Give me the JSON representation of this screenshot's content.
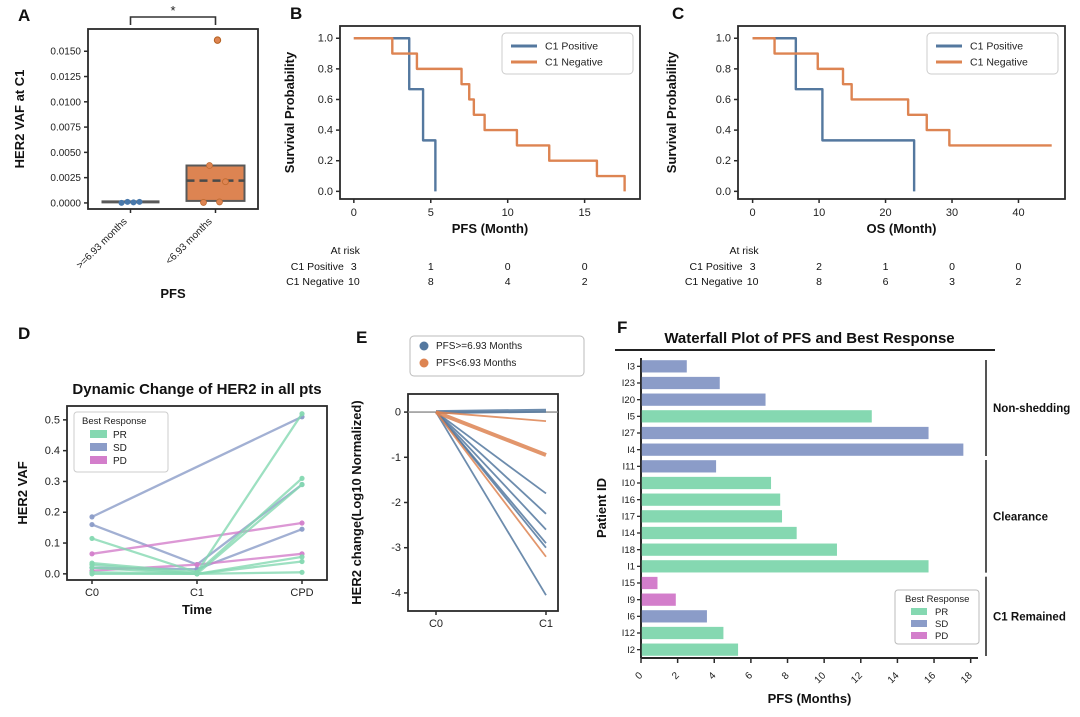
{
  "panels": {
    "a": "A",
    "b": "B",
    "c": "C",
    "d": "D",
    "e": "E",
    "f": "F"
  },
  "colors": {
    "km_blue": "#54789f",
    "km_orange": "#dd8452",
    "pr": "#85d8b1",
    "sd": "#8b9cc8",
    "pd": "#d37ecb",
    "point_blue": "#4878ab",
    "box_edge": "#595959",
    "spine": "#2a2a2a"
  },
  "chart_data": [
    {
      "panel": "A",
      "type": "box",
      "ylabel": "HER2 VAF at C1",
      "xlabel": "PFS",
      "yticks": [
        0.0,
        0.0025,
        0.005,
        0.0075,
        0.01,
        0.0125,
        0.015
      ],
      "ytick_labels": [
        "0.0000",
        "0.0025",
        "0.0050",
        "0.0075",
        "0.0100",
        "0.0125",
        "0.0150"
      ],
      "ylim": [
        -0.0006,
        0.0172
      ],
      "categories": [
        ">=6.93 months",
        "<6.93 months"
      ],
      "significance": "*",
      "groups": [
        {
          "label": ">=6.93 months",
          "style": "strip",
          "color": "#4878ab",
          "center_line": 0.0001,
          "points": [
            0.0,
            0.0001,
            5e-05,
            0.0001
          ]
        },
        {
          "label": "<6.93 months",
          "style": "box",
          "color": "#dd8452",
          "q1": 0.0002,
          "median": 0.0022,
          "q3": 0.0037,
          "points": [
            0.0037,
            0.0021,
            5e-05,
            0.0001
          ],
          "outliers": [
            0.0161
          ]
        }
      ]
    },
    {
      "panel": "B",
      "type": "km",
      "ylabel": "Survival Probability",
      "xlabel": "PFS (Month)",
      "xticks": [
        0,
        5,
        10,
        15
      ],
      "xlim": [
        -0.9,
        18.6
      ],
      "yticks": [
        0.0,
        0.2,
        0.4,
        0.6,
        0.8,
        1.0
      ],
      "ytick_labels": [
        "0.0",
        "0.2",
        "0.4",
        "0.6",
        "0.8",
        "1.0"
      ],
      "series": [
        {
          "name": "C1 Positive",
          "color": "#54789f",
          "steps": [
            [
              0,
              1
            ],
            [
              3.6,
              1
            ],
            [
              3.6,
              0.667
            ],
            [
              4.5,
              0.667
            ],
            [
              4.5,
              0.333
            ],
            [
              5.3,
              0.333
            ],
            [
              5.3,
              0
            ]
          ]
        },
        {
          "name": "C1 Negative",
          "color": "#dd8452",
          "steps": [
            [
              0,
              1
            ],
            [
              2.5,
              1
            ],
            [
              2.5,
              0.9
            ],
            [
              4.1,
              0.9
            ],
            [
              4.1,
              0.8
            ],
            [
              7.0,
              0.8
            ],
            [
              7.0,
              0.7
            ],
            [
              7.5,
              0.7
            ],
            [
              7.5,
              0.6
            ],
            [
              7.8,
              0.6
            ],
            [
              7.8,
              0.5
            ],
            [
              8.5,
              0.5
            ],
            [
              8.5,
              0.4
            ],
            [
              10.6,
              0.4
            ],
            [
              10.6,
              0.3
            ],
            [
              12.7,
              0.3
            ],
            [
              12.7,
              0.2
            ],
            [
              15.8,
              0.2
            ],
            [
              15.8,
              0.1
            ],
            [
              17.6,
              0.1
            ],
            [
              17.6,
              0
            ]
          ]
        }
      ],
      "at_risk": {
        "label": "At risk",
        "rows": [
          {
            "name": "C1 Positive",
            "counts": [
              "3",
              "1",
              "0",
              "0"
            ]
          },
          {
            "name": "C1 Negative",
            "counts": [
              "10",
              "8",
              "4",
              "2"
            ]
          }
        ]
      }
    },
    {
      "panel": "C",
      "type": "km",
      "ylabel": "Survival Probability",
      "xlabel": "OS (Month)",
      "xticks": [
        0,
        10,
        20,
        30,
        40
      ],
      "xlim": [
        -2.2,
        47
      ],
      "yticks": [
        0.0,
        0.2,
        0.4,
        0.6,
        0.8,
        1.0
      ],
      "ytick_labels": [
        "0.0",
        "0.2",
        "0.4",
        "0.6",
        "0.8",
        "1.0"
      ],
      "series": [
        {
          "name": "C1 Positive",
          "color": "#54789f",
          "steps": [
            [
              0,
              1
            ],
            [
              6.5,
              1
            ],
            [
              6.5,
              0.667
            ],
            [
              10.5,
              0.667
            ],
            [
              10.5,
              0.333
            ],
            [
              24.3,
              0.333
            ],
            [
              24.3,
              0
            ]
          ]
        },
        {
          "name": "C1 Negative",
          "color": "#dd8452",
          "steps": [
            [
              0,
              1
            ],
            [
              3.3,
              1
            ],
            [
              3.3,
              0.9
            ],
            [
              9.8,
              0.9
            ],
            [
              9.8,
              0.8
            ],
            [
              13.6,
              0.8
            ],
            [
              13.6,
              0.7
            ],
            [
              14.9,
              0.7
            ],
            [
              14.9,
              0.6
            ],
            [
              23.4,
              0.6
            ],
            [
              23.4,
              0.5
            ],
            [
              26.2,
              0.5
            ],
            [
              26.2,
              0.4
            ],
            [
              29.6,
              0.4
            ],
            [
              29.6,
              0.3
            ],
            [
              45,
              0.3
            ]
          ]
        }
      ],
      "at_risk": {
        "label": "At risk",
        "rows": [
          {
            "name": "C1 Positive",
            "counts": [
              "3",
              "2",
              "1",
              "0",
              "0"
            ]
          },
          {
            "name": "C1 Negative",
            "counts": [
              "10",
              "8",
              "6",
              "3",
              "2"
            ]
          }
        ]
      }
    },
    {
      "panel": "D",
      "type": "line",
      "title": "Dynamic Change of HER2 in all pts",
      "ylabel": "HER2 VAF",
      "xlabel": "Time",
      "categories": [
        "C0",
        "C1",
        "CPD"
      ],
      "yticks": [
        0.0,
        0.1,
        0.2,
        0.3,
        0.4,
        0.5
      ],
      "ytick_labels": [
        "0.0",
        "0.1",
        "0.2",
        "0.3",
        "0.4",
        "0.5"
      ],
      "ylim": [
        -0.02,
        0.545
      ],
      "legend_title": "Best Response",
      "legend": [
        {
          "label": "PR",
          "color": "#85d8b1"
        },
        {
          "label": "SD",
          "color": "#8b9cc8"
        },
        {
          "label": "PD",
          "color": "#d37ecb"
        }
      ],
      "series": [
        {
          "response": "SD",
          "points": [
            [
              0,
              0.185
            ],
            [
              2,
              0.51
            ]
          ]
        },
        {
          "response": "SD",
          "points": [
            [
              0,
              0.16
            ],
            [
              1,
              0.03
            ],
            [
              2,
              0.29
            ]
          ]
        },
        {
          "response": "SD",
          "points": [
            [
              0,
              0.02
            ],
            [
              1,
              0.015
            ],
            [
              2,
              0.145
            ]
          ]
        },
        {
          "response": "PD",
          "points": [
            [
              0,
              0.065
            ],
            [
              2,
              0.165
            ]
          ]
        },
        {
          "response": "PD",
          "points": [
            [
              0,
              0.01
            ],
            [
              1,
              0.03
            ],
            [
              2,
              0.065
            ]
          ]
        },
        {
          "response": "PR",
          "points": [
            [
              0,
              0.115
            ],
            [
              1,
              0.005
            ],
            [
              2,
              0.52
            ]
          ]
        },
        {
          "response": "PR",
          "points": [
            [
              0,
              0.035
            ],
            [
              1,
              0.005
            ],
            [
              2,
              0.31
            ]
          ]
        },
        {
          "response": "PR",
          "points": [
            [
              0,
              0.03
            ],
            [
              1,
              0.0
            ],
            [
              2,
              0.29
            ]
          ]
        },
        {
          "response": "PR",
          "points": [
            [
              0,
              0.02
            ],
            [
              1,
              0.0
            ],
            [
              2,
              0.055
            ]
          ]
        },
        {
          "response": "PR",
          "points": [
            [
              0,
              0.005
            ],
            [
              1,
              0.0
            ],
            [
              2,
              0.04
            ]
          ]
        },
        {
          "response": "PR",
          "points": [
            [
              0,
              0.0
            ],
            [
              1,
              0.0
            ],
            [
              2,
              0.005
            ]
          ]
        }
      ]
    },
    {
      "panel": "E",
      "type": "slope",
      "ylabel": "HER2 change(Log10 Normalized)",
      "categories": [
        "C0",
        "C1"
      ],
      "yticks": [
        0,
        -1,
        -2,
        -3,
        -4
      ],
      "ytick_labels": [
        "0",
        "-1",
        "-2",
        "-3",
        "-4"
      ],
      "legend": [
        {
          "label": "PFS>=6.93 Months",
          "group": "ge",
          "color": "#54789f"
        },
        {
          "label": "PFS<6.93 Months",
          "group": "lt",
          "color": "#dd8452"
        }
      ],
      "zero_line": true,
      "lines": [
        {
          "group": "ge",
          "end": 0.03,
          "width": 4
        },
        {
          "group": "ge",
          "end": -1.8
        },
        {
          "group": "ge",
          "end": -2.25
        },
        {
          "group": "ge",
          "end": -2.6
        },
        {
          "group": "ge",
          "end": -2.9
        },
        {
          "group": "ge",
          "end": -3.0
        },
        {
          "group": "ge",
          "end": -4.05
        },
        {
          "group": "lt",
          "end": -0.2
        },
        {
          "group": "lt",
          "end": -0.95,
          "width": 4
        },
        {
          "group": "lt",
          "end": -3.2
        }
      ]
    },
    {
      "panel": "F",
      "type": "bar_h",
      "title": "Waterfall Plot of PFS and Best Response",
      "xlabel": "PFS (Months)",
      "ylabel": "Patient ID",
      "xticks": [
        0,
        2,
        4,
        6,
        8,
        10,
        12,
        14,
        16,
        18
      ],
      "xlim": [
        0,
        18.4
      ],
      "legend_title": "Best Response",
      "legend": [
        {
          "label": "PR",
          "color": "#85d8b1"
        },
        {
          "label": "SD",
          "color": "#8b9cc8"
        },
        {
          "label": "PD",
          "color": "#d37ecb"
        }
      ],
      "bars": [
        {
          "id": "I3",
          "response": "SD",
          "value": 2.5
        },
        {
          "id": "I23",
          "response": "SD",
          "value": 4.3
        },
        {
          "id": "I20",
          "response": "SD",
          "value": 6.8
        },
        {
          "id": "I5",
          "response": "PR",
          "value": 12.6
        },
        {
          "id": "I27",
          "response": "SD",
          "value": 15.7
        },
        {
          "id": "I4",
          "response": "SD",
          "value": 17.6
        },
        {
          "id": "I11",
          "response": "SD",
          "value": 4.1
        },
        {
          "id": "I10",
          "response": "PR",
          "value": 7.1
        },
        {
          "id": "I16",
          "response": "PR",
          "value": 7.6
        },
        {
          "id": "I17",
          "response": "PR",
          "value": 7.7
        },
        {
          "id": "I14",
          "response": "PR",
          "value": 8.5
        },
        {
          "id": "I18",
          "response": "PR",
          "value": 10.7
        },
        {
          "id": "I1",
          "response": "PR",
          "value": 15.7
        },
        {
          "id": "I15",
          "response": "PD",
          "value": 0.9
        },
        {
          "id": "I9",
          "response": "PD",
          "value": 1.9
        },
        {
          "id": "I6",
          "response": "SD",
          "value": 3.6
        },
        {
          "id": "I12",
          "response": "PR",
          "value": 4.5
        },
        {
          "id": "I2",
          "response": "PR",
          "value": 5.3
        }
      ],
      "groups": [
        {
          "label": "Non-shedding",
          "start": 0,
          "end": 5
        },
        {
          "label": "Clearance",
          "start": 6,
          "end": 12
        },
        {
          "label": "C1 Remained",
          "start": 13,
          "end": 17
        }
      ]
    }
  ]
}
